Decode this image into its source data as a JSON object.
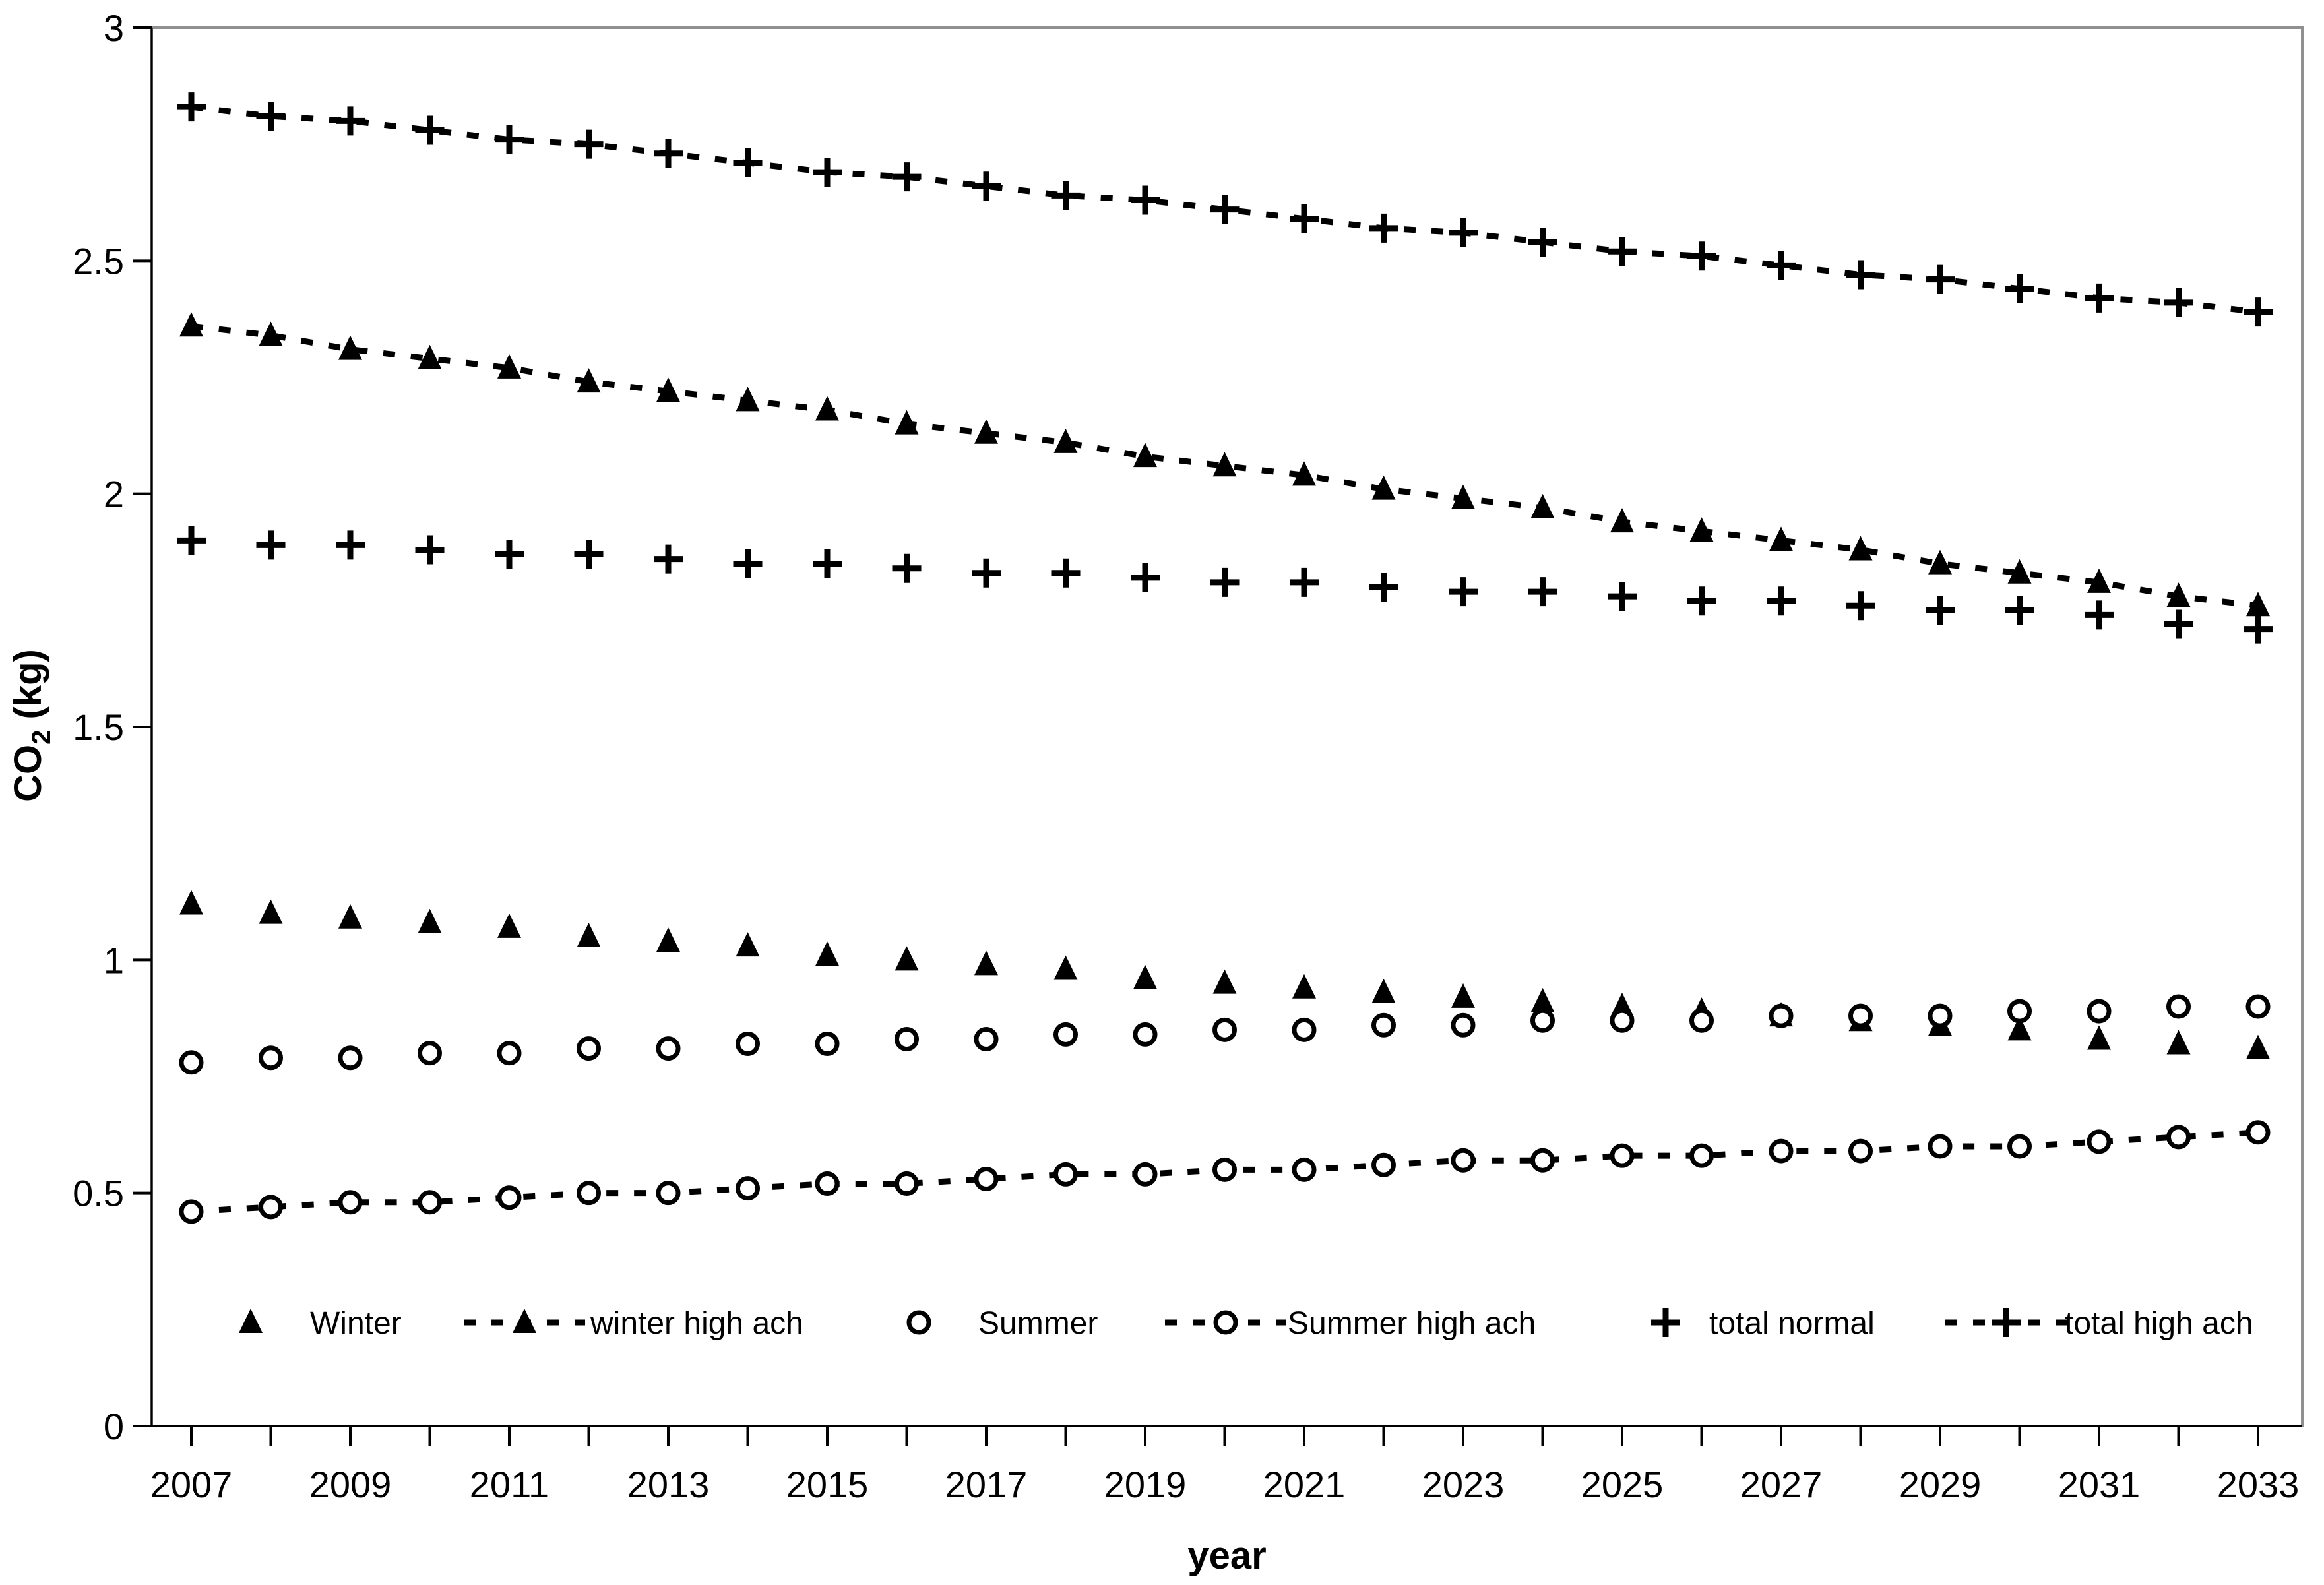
{
  "chart_data": {
    "type": "scatter",
    "title": "",
    "xlabel": "year",
    "ylabel": "CO2 (kg)",
    "ylabel_parts": {
      "main": "CO",
      "sub": "2",
      "rest": " (kg)"
    },
    "xlim": [
      2007,
      2033
    ],
    "ylim": [
      0,
      3
    ],
    "yticks": [
      0,
      0.5,
      1,
      1.5,
      2,
      2.5,
      3
    ],
    "ytick_labels": [
      "0",
      "0.5",
      "1",
      "1.5",
      "2",
      "2.5",
      "3"
    ],
    "x_label_every": 2,
    "grid": false,
    "legend_position": "inside-bottom",
    "marker_color": "#000000",
    "border_color": "#909090",
    "years": [
      2007,
      2008,
      2009,
      2010,
      2011,
      2012,
      2013,
      2014,
      2015,
      2016,
      2017,
      2018,
      2019,
      2020,
      2021,
      2022,
      2023,
      2024,
      2025,
      2026,
      2027,
      2028,
      2029,
      2030,
      2031,
      2032,
      2033
    ],
    "series": [
      {
        "name": "Winter",
        "marker": "triangle",
        "dashed": false,
        "values": [
          1.12,
          1.1,
          1.09,
          1.08,
          1.07,
          1.05,
          1.04,
          1.03,
          1.01,
          1.0,
          0.99,
          0.98,
          0.96,
          0.95,
          0.94,
          0.93,
          0.92,
          0.91,
          0.9,
          0.89,
          0.88,
          0.87,
          0.86,
          0.85,
          0.83,
          0.82,
          0.81
        ]
      },
      {
        "name": "winter high ach",
        "marker": "triangle",
        "dashed": true,
        "values": [
          2.36,
          2.34,
          2.31,
          2.29,
          2.27,
          2.24,
          2.22,
          2.2,
          2.18,
          2.15,
          2.13,
          2.11,
          2.08,
          2.06,
          2.04,
          2.01,
          1.99,
          1.97,
          1.94,
          1.92,
          1.9,
          1.88,
          1.85,
          1.83,
          1.81,
          1.78,
          1.76
        ]
      },
      {
        "name": "Summer",
        "marker": "circle",
        "dashed": false,
        "values": [
          0.78,
          0.79,
          0.79,
          0.8,
          0.8,
          0.81,
          0.81,
          0.82,
          0.82,
          0.83,
          0.83,
          0.84,
          0.84,
          0.85,
          0.85,
          0.86,
          0.86,
          0.87,
          0.87,
          0.87,
          0.88,
          0.88,
          0.88,
          0.89,
          0.89,
          0.9,
          0.9
        ]
      },
      {
        "name": "Summer high ach",
        "marker": "circle",
        "dashed": true,
        "values": [
          0.46,
          0.47,
          0.48,
          0.48,
          0.49,
          0.5,
          0.5,
          0.51,
          0.52,
          0.52,
          0.53,
          0.54,
          0.54,
          0.55,
          0.55,
          0.56,
          0.57,
          0.57,
          0.58,
          0.58,
          0.59,
          0.59,
          0.6,
          0.6,
          0.61,
          0.62,
          0.63
        ]
      },
      {
        "name": "total normal",
        "marker": "plus",
        "dashed": false,
        "values": [
          1.9,
          1.89,
          1.89,
          1.88,
          1.87,
          1.87,
          1.86,
          1.85,
          1.85,
          1.84,
          1.83,
          1.83,
          1.82,
          1.81,
          1.81,
          1.8,
          1.79,
          1.79,
          1.78,
          1.77,
          1.77,
          1.76,
          1.75,
          1.75,
          1.74,
          1.72,
          1.71
        ]
      },
      {
        "name": "total high ach",
        "marker": "plus",
        "dashed": true,
        "values": [
          2.83,
          2.81,
          2.8,
          2.78,
          2.76,
          2.75,
          2.73,
          2.71,
          2.69,
          2.68,
          2.66,
          2.64,
          2.63,
          2.61,
          2.59,
          2.57,
          2.56,
          2.54,
          2.52,
          2.51,
          2.49,
          2.47,
          2.46,
          2.44,
          2.42,
          2.41,
          2.39
        ]
      }
    ],
    "legend": [
      {
        "label": "Winter",
        "marker": "triangle",
        "dashed": false
      },
      {
        "label": "winter high ach",
        "marker": "triangle",
        "dashed": true
      },
      {
        "label": "Summer",
        "marker": "circle",
        "dashed": false
      },
      {
        "label": "Summer high ach",
        "marker": "circle",
        "dashed": true
      },
      {
        "label": "total normal",
        "marker": "plus",
        "dashed": false
      },
      {
        "label": "total high ach",
        "marker": "plus",
        "dashed": true
      }
    ]
  }
}
